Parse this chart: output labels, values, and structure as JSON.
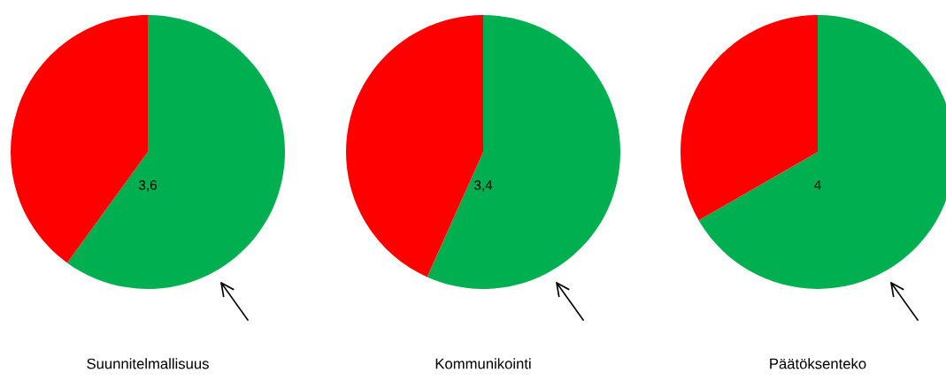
{
  "chart_data": [
    {
      "type": "pie",
      "title": "Suunnitelmallisuus",
      "categories": [
        null,
        null
      ],
      "values": [
        60,
        40
      ],
      "colors": [
        "#00b050",
        "#ff0000"
      ],
      "annotations": [
        "3,6"
      ]
    },
    {
      "type": "pie",
      "title": "Kommunikointi",
      "categories": [
        null,
        null
      ],
      "values": [
        56.7,
        43.3
      ],
      "colors": [
        "#00b050",
        "#ff0000"
      ],
      "annotations": [
        "3,4"
      ]
    },
    {
      "type": "pie",
      "title": "Päätöksenteko",
      "categories": [
        null,
        null
      ],
      "values": [
        66.7,
        33.3
      ],
      "colors": [
        "#00b050",
        "#ff0000"
      ],
      "annotations": [
        "4"
      ]
    }
  ]
}
